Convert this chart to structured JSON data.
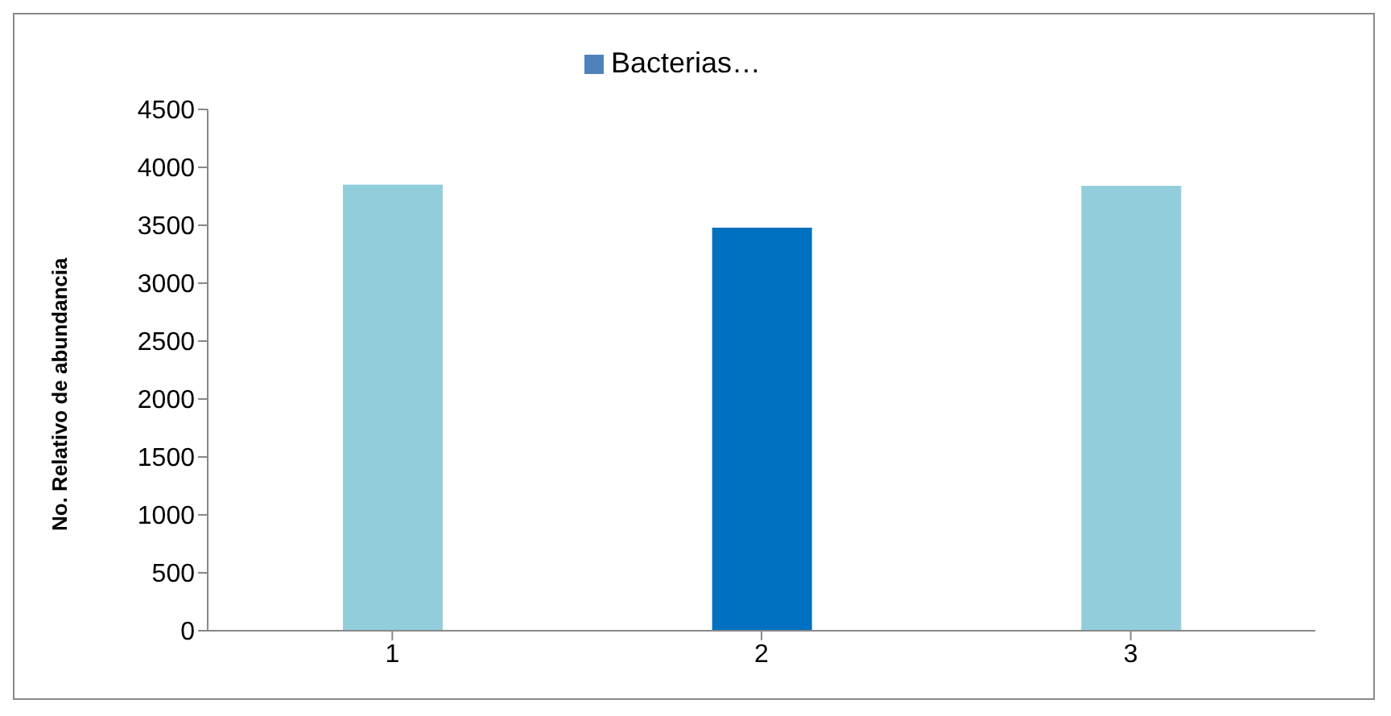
{
  "chart_data": {
    "type": "bar",
    "ylabel": "No. Relativo de abundancia",
    "categories": [
      "1",
      "2",
      "3"
    ],
    "series": [
      {
        "name": "Bacterias…",
        "color": "#4f81bd",
        "colors": [
          "#92cddc",
          "#0070c0",
          "#92cddc"
        ],
        "values": [
          3850,
          3480,
          3840
        ]
      }
    ],
    "ylim": [
      0,
      4500
    ],
    "yticks": [
      0,
      500,
      1000,
      1500,
      2000,
      2500,
      3000,
      3500,
      4000,
      4500
    ],
    "grid": false,
    "legend": "top"
  }
}
